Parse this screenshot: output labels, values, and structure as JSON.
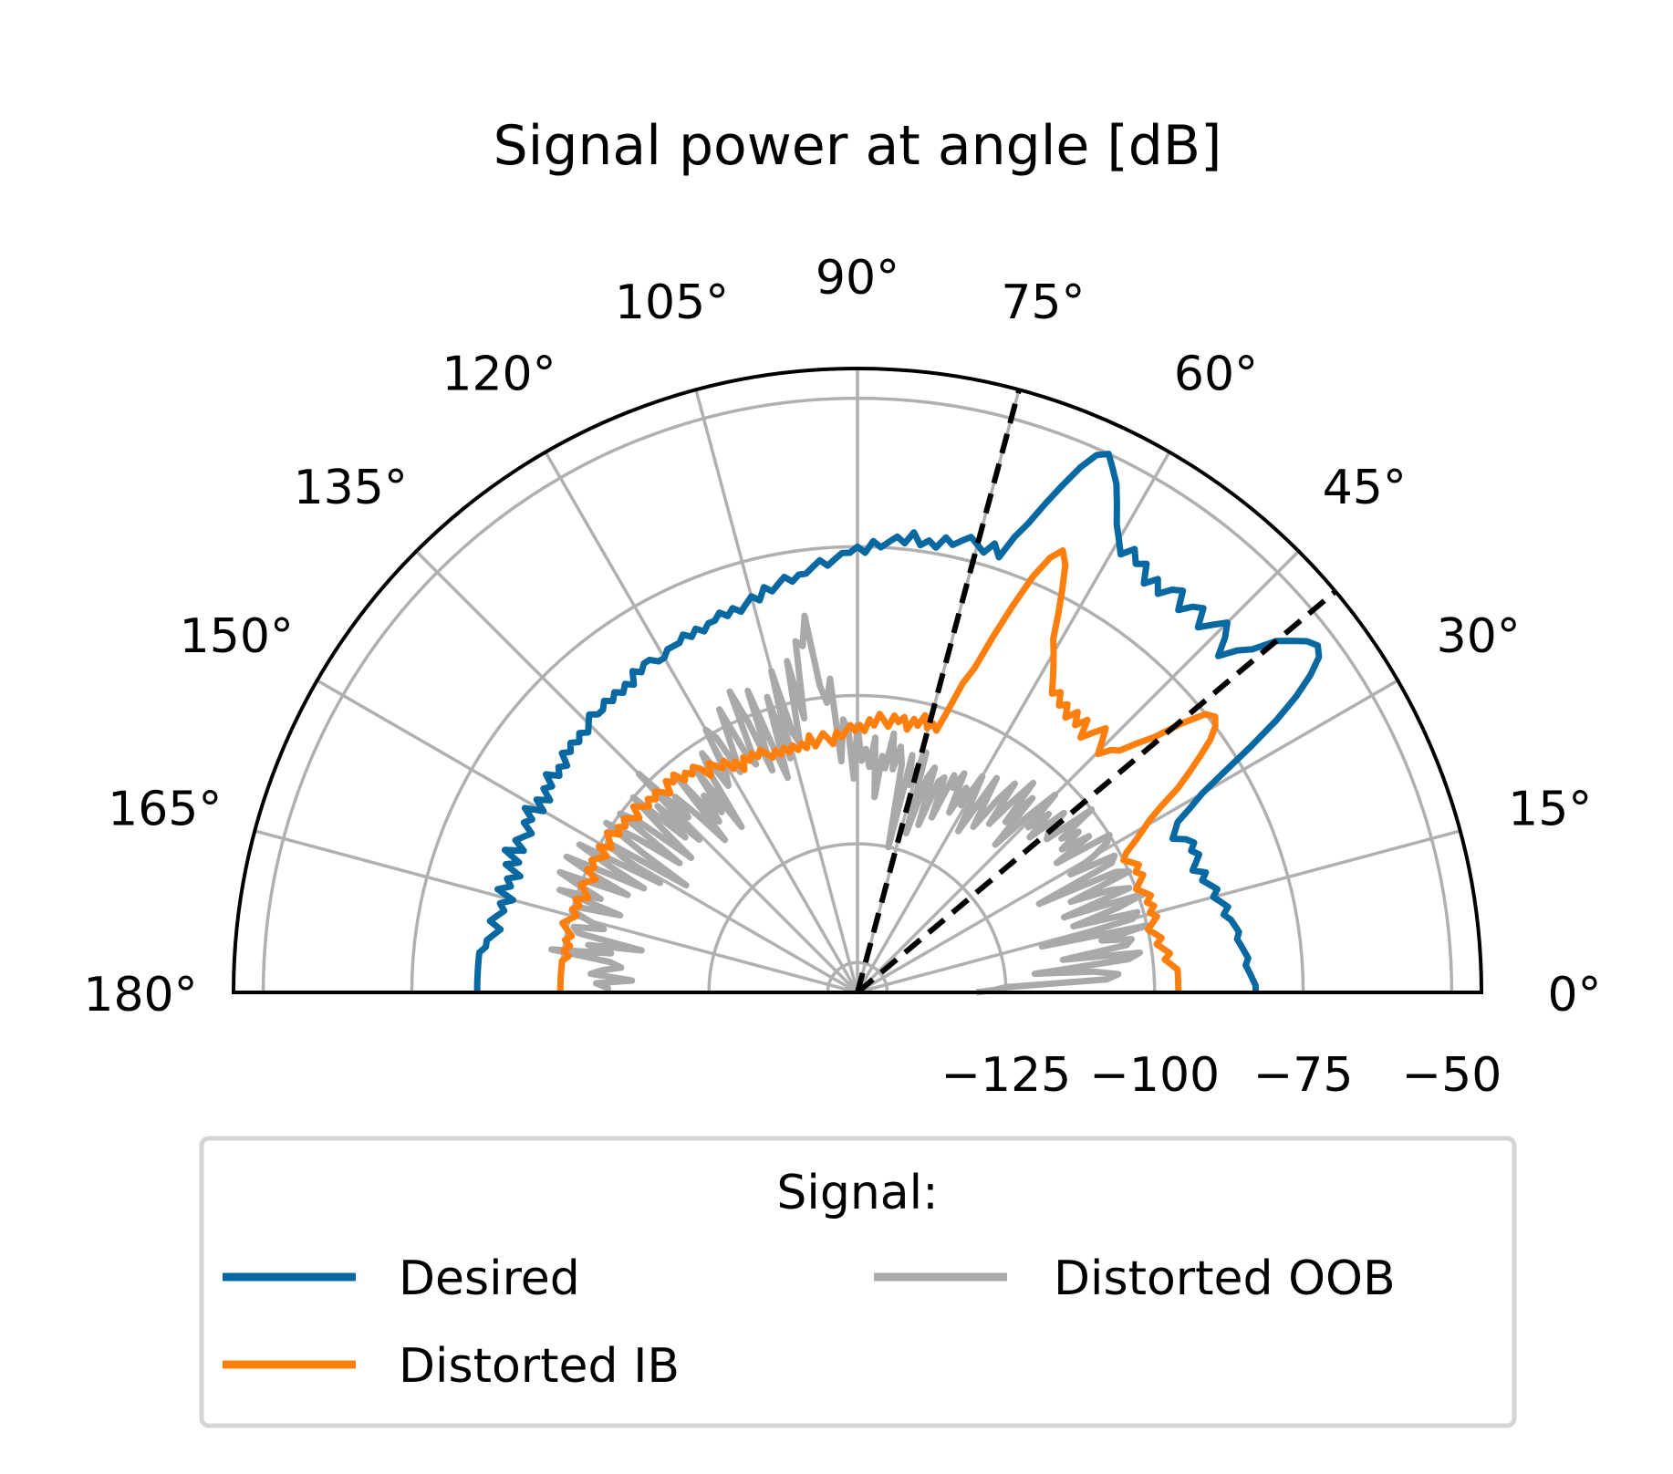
{
  "chart_data": {
    "type": "line",
    "subtype": "polar",
    "title": "Signal power at angle [dB]",
    "theta_range_deg": [
      0,
      180
    ],
    "theta_ticks": [
      "0°",
      "15°",
      "30°",
      "45°",
      "60°",
      "75°",
      "90°",
      "105°",
      "120°",
      "135°",
      "150°",
      "165°",
      "180°"
    ],
    "r_range": [
      -150,
      -45
    ],
    "r_grid": [
      -125,
      -100,
      -75,
      -50
    ],
    "r_tick_labels": [
      "−125",
      "−100",
      "−75",
      "−50"
    ],
    "grid": true,
    "steering_angles_deg": [
      40,
      75
    ],
    "legend": {
      "title": "Signal:",
      "location": "lower center",
      "entries": [
        "Desired",
        "Distorted IB",
        "Distorted OOB"
      ]
    },
    "series": [
      {
        "name": "Desired",
        "color": "#0868a1",
        "r_db": [
          -83,
          -83,
          -83.5,
          -84,
          -84.5,
          -84,
          -84.5,
          -85,
          -85.5,
          -85,
          -85.5,
          -86,
          -87,
          -86,
          -87,
          -88,
          -87,
          -88,
          -89,
          -88,
          -90,
          -89,
          -88,
          -89,
          -88,
          -89,
          -91,
          -90,
          -89,
          -86,
          -83,
          -78,
          -72,
          -66,
          -61,
          -57,
          -54,
          -53,
          -54,
          -56,
          -58,
          -62,
          -64,
          -67,
          -64,
          -62,
          -64,
          -66,
          -63,
          -64,
          -66,
          -63,
          -64,
          -66,
          -64,
          -66,
          -63,
          -64,
          -62,
          -64,
          -62,
          -60,
          -57,
          -54,
          -52,
          -50,
          -51,
          -54,
          -58,
          -62,
          -66,
          -69,
          -73,
          -71,
          -73,
          -72,
          -71,
          -72,
          -73,
          -72,
          -74,
          -73,
          -74,
          -72,
          -74,
          -73,
          -74,
          -75,
          -74,
          -76,
          -75,
          -76,
          -76,
          -77,
          -78,
          -77,
          -78,
          -79,
          -79,
          -80,
          -79,
          -80,
          -81,
          -80,
          -82,
          -81,
          -82,
          -83,
          -82,
          -83,
          -82,
          -83,
          -83,
          -84,
          -83,
          -84,
          -83,
          -84,
          -84,
          -84,
          -85,
          -85,
          -84,
          -84,
          -85,
          -84,
          -86,
          -85,
          -86,
          -85,
          -86,
          -85,
          -86,
          -86,
          -85,
          -86,
          -87,
          -86,
          -87,
          -86,
          -87,
          -86,
          -88,
          -87,
          -88,
          -86,
          -88,
          -87,
          -89,
          -87,
          -89,
          -86,
          -88,
          -87,
          -89,
          -88,
          -87,
          -89,
          -86,
          -89,
          -87,
          -90,
          -88,
          -89,
          -87,
          -90,
          -88,
          -89,
          -88,
          -87,
          -89,
          -88,
          -87,
          -87,
          -86,
          -86,
          -86,
          -86,
          -86,
          -86,
          -86
        ]
      },
      {
        "name": "Distorted IB",
        "color": "#ff7f0e",
        "r_db": [
          -96,
          -96,
          -96,
          -96,
          -96,
          -97,
          -98,
          -97,
          -98,
          -99,
          -98,
          -99,
          -100,
          -99,
          -98,
          -99,
          -98,
          -99,
          -98,
          -99,
          -100,
          -99,
          -98,
          -99,
          -98,
          -99,
          -100,
          -99,
          -97,
          -95,
          -93,
          -90,
          -86,
          -83,
          -80,
          -77,
          -75,
          -74,
          -75,
          -79,
          -84,
          -87,
          -90,
          -91,
          -93,
          -91,
          -89,
          -91,
          -93,
          -90,
          -92,
          -90,
          -92,
          -90,
          -91,
          -89,
          -90,
          -88,
          -86,
          -84,
          -82,
          -78,
          -74,
          -70,
          -68,
          -70,
          -74,
          -80,
          -86,
          -92,
          -95,
          -100,
          -104,
          -103,
          -104,
          -102,
          -104,
          -103,
          -105,
          -103,
          -104,
          -103,
          -105,
          -104,
          -103,
          -105,
          -104,
          -106,
          -105,
          -106,
          -105,
          -106,
          -107,
          -106,
          -108,
          -107,
          -106,
          -107,
          -108,
          -106,
          -108,
          -107,
          -108,
          -107,
          -108,
          -107,
          -108,
          -107,
          -108,
          -107,
          -106,
          -107,
          -106,
          -107,
          -106,
          -108,
          -106,
          -107,
          -105,
          -106,
          -105,
          -104,
          -106,
          -104,
          -103,
          -104,
          -103,
          -104,
          -102,
          -103,
          -102,
          -104,
          -103,
          -102,
          -103,
          -102,
          -103,
          -102,
          -101,
          -103,
          -102,
          -101,
          -102,
          -101,
          -102,
          -100,
          -101,
          -102,
          -100,
          -102,
          -101,
          -100,
          -101,
          -100,
          -102,
          -101,
          -100,
          -101,
          -102,
          -100,
          -101,
          -100,
          -101,
          -100,
          -99,
          -100,
          -101,
          -100,
          -101,
          -100,
          -101,
          -100,
          -100,
          -100,
          -100,
          -100,
          -100,
          -100
        ]
      },
      {
        "name": "Distorted OOB",
        "color": "#a9a9a9",
        "r_db": [
          -130,
          -127,
          -125,
          -108,
          -106,
          -110,
          -120,
          -104,
          -102,
          -115,
          -104,
          -103,
          -108,
          -100,
          -118,
          -102,
          -101,
          -112,
          -104,
          -99,
          -113,
          -101,
          -104,
          -111,
          -100,
          -102,
          -116,
          -102,
          -101,
          -109,
          -104,
          -101,
          -100,
          -110,
          -103,
          -108,
          -104,
          -107,
          -100,
          -109,
          -108,
          -104,
          -111,
          -106,
          -110,
          -103,
          -109,
          -116,
          -106,
          -112,
          -104,
          -109,
          -114,
          -106,
          -110,
          -116,
          -112,
          -107,
          -118,
          -113,
          -108,
          -114,
          -111,
          -116,
          -109,
          -112,
          -110,
          -118,
          -111,
          -112,
          -120,
          -110,
          -112,
          -122,
          -108,
          -111,
          -114,
          -109,
          -125,
          -111,
          -108,
          -112,
          -106,
          -112,
          -110,
          -117,
          -107,
          -112,
          -109,
          -111,
          -105,
          -114,
          -106,
          -104,
          -111,
          -97,
          -101,
          -98,
          -86,
          -91,
          -90,
          -103,
          -93,
          -107,
          -105,
          -94,
          -109,
          -98,
          -112,
          -106,
          -96,
          -110,
          -101,
          -95,
          -108,
          -106,
          -97,
          -103,
          -108,
          -101,
          -99,
          -107,
          -109,
          -102,
          -106,
          -116,
          -104,
          -112,
          -108,
          -113,
          -103,
          -116,
          -110,
          -105,
          -109,
          -98,
          -113,
          -104,
          -111,
          -100,
          -107,
          -114,
          -103,
          -100,
          -113,
          -105,
          -99,
          -107,
          -116,
          -101,
          -104,
          -112,
          -97,
          -103,
          -110,
          -96,
          -101,
          -108,
          -96,
          -100,
          -104,
          -97,
          -108,
          -101,
          -100,
          -103,
          -106,
          -101,
          -102,
          -113,
          -104,
          -108,
          -98,
          -108,
          -110,
          -107,
          -105,
          -112,
          -106,
          -108,
          -108
        ]
      }
    ]
  }
}
